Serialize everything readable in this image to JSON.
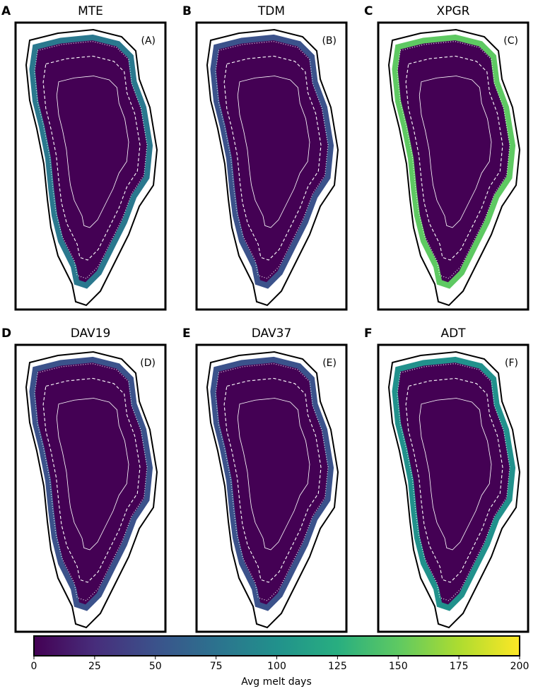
{
  "panels": [
    {
      "letter": "A",
      "title": "MTE",
      "label": "(A)"
    },
    {
      "letter": "B",
      "title": "TDM",
      "label": "(B)"
    },
    {
      "letter": "C",
      "title": "XPGR",
      "label": "(C)"
    },
    {
      "letter": "D",
      "title": "DAV19",
      "label": "(D)"
    },
    {
      "letter": "E",
      "title": "DAV37",
      "label": "(E)"
    },
    {
      "letter": "F",
      "title": "ADT",
      "label": "(F)"
    }
  ],
  "colorbar": {
    "label": "Avg melt days",
    "lim": [
      0,
      200
    ],
    "ticks": [
      0,
      25,
      50,
      75,
      100,
      125,
      150,
      175,
      200
    ]
  }
}
